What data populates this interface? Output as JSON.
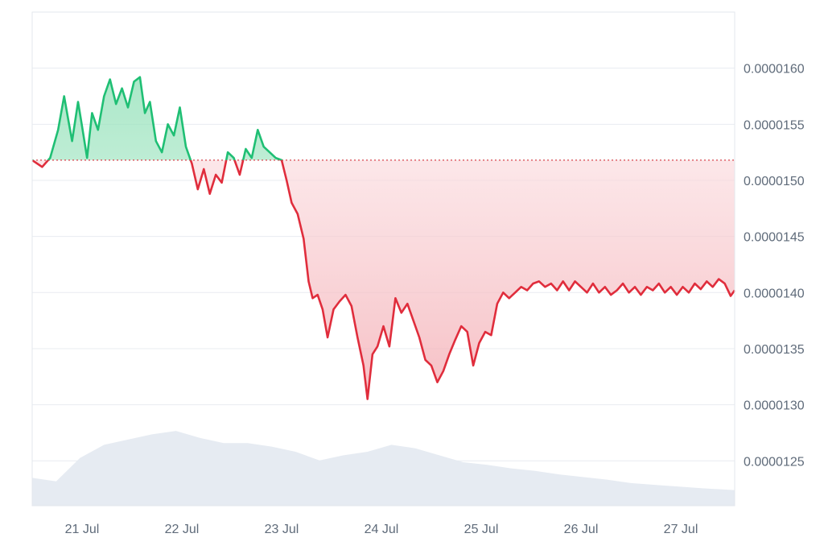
{
  "chart_data": {
    "type": "area",
    "x_tick_labels": [
      "21 Jul",
      "22 Jul",
      "23 Jul",
      "24 Jul",
      "25 Jul",
      "26 Jul",
      "27 Jul"
    ],
    "y_tick_labels": [
      "0.0000160",
      "0.0000155",
      "0.0000150",
      "0.0000145",
      "0.0000140",
      "0.0000135",
      "0.0000130",
      "0.0000125"
    ],
    "y_ticks": [
      1.6e-05,
      1.55e-05,
      1.5e-05,
      1.45e-05,
      1.4e-05,
      1.35e-05,
      1.3e-05,
      1.25e-05
    ],
    "ylim": [
      1.21e-05,
      1.65e-05
    ],
    "xlim_days": [
      20.5,
      27.54
    ],
    "x_tick_days": [
      21,
      22,
      23,
      24,
      25,
      26,
      27
    ],
    "baseline": 1.518e-05,
    "grid": true,
    "series": [
      {
        "values": [
          [
            20.5,
            1.518e-05
          ],
          [
            20.6,
            1.512e-05
          ],
          [
            20.68,
            1.52e-05
          ],
          [
            20.76,
            1.545e-05
          ],
          [
            20.82,
            1.575e-05
          ],
          [
            20.86,
            1.555e-05
          ],
          [
            20.9,
            1.535e-05
          ],
          [
            20.96,
            1.57e-05
          ],
          [
            21.0,
            1.548e-05
          ],
          [
            21.05,
            1.52e-05
          ],
          [
            21.1,
            1.56e-05
          ],
          [
            21.16,
            1.545e-05
          ],
          [
            21.22,
            1.575e-05
          ],
          [
            21.28,
            1.59e-05
          ],
          [
            21.34,
            1.568e-05
          ],
          [
            21.4,
            1.582e-05
          ],
          [
            21.46,
            1.565e-05
          ],
          [
            21.52,
            1.588e-05
          ],
          [
            21.58,
            1.592e-05
          ],
          [
            21.63,
            1.56e-05
          ],
          [
            21.68,
            1.57e-05
          ],
          [
            21.74,
            1.535e-05
          ],
          [
            21.8,
            1.525e-05
          ],
          [
            21.86,
            1.55e-05
          ],
          [
            21.92,
            1.54e-05
          ],
          [
            21.98,
            1.565e-05
          ],
          [
            22.04,
            1.53e-05
          ],
          [
            22.1,
            1.515e-05
          ],
          [
            22.16,
            1.492e-05
          ],
          [
            22.22,
            1.51e-05
          ],
          [
            22.28,
            1.488e-05
          ],
          [
            22.34,
            1.505e-05
          ],
          [
            22.4,
            1.498e-05
          ],
          [
            22.46,
            1.525e-05
          ],
          [
            22.52,
            1.52e-05
          ],
          [
            22.58,
            1.505e-05
          ],
          [
            22.64,
            1.528e-05
          ],
          [
            22.7,
            1.52e-05
          ],
          [
            22.76,
            1.545e-05
          ],
          [
            22.82,
            1.53e-05
          ],
          [
            22.88,
            1.525e-05
          ],
          [
            22.94,
            1.52e-05
          ],
          [
            23.0,
            1.518e-05
          ],
          [
            23.05,
            1.5e-05
          ],
          [
            23.1,
            1.48e-05
          ],
          [
            23.16,
            1.47e-05
          ],
          [
            23.22,
            1.448e-05
          ],
          [
            23.27,
            1.41e-05
          ],
          [
            23.31,
            1.395e-05
          ],
          [
            23.36,
            1.398e-05
          ],
          [
            23.41,
            1.385e-05
          ],
          [
            23.46,
            1.36e-05
          ],
          [
            23.52,
            1.385e-05
          ],
          [
            23.58,
            1.392e-05
          ],
          [
            23.64,
            1.398e-05
          ],
          [
            23.7,
            1.388e-05
          ],
          [
            23.76,
            1.36e-05
          ],
          [
            23.82,
            1.335e-05
          ],
          [
            23.86,
            1.305e-05
          ],
          [
            23.91,
            1.345e-05
          ],
          [
            23.96,
            1.352e-05
          ],
          [
            24.02,
            1.37e-05
          ],
          [
            24.08,
            1.352e-05
          ],
          [
            24.14,
            1.395e-05
          ],
          [
            24.2,
            1.382e-05
          ],
          [
            24.26,
            1.39e-05
          ],
          [
            24.32,
            1.375e-05
          ],
          [
            24.38,
            1.36e-05
          ],
          [
            24.44,
            1.34e-05
          ],
          [
            24.5,
            1.335e-05
          ],
          [
            24.56,
            1.32e-05
          ],
          [
            24.62,
            1.33e-05
          ],
          [
            24.68,
            1.345e-05
          ],
          [
            24.74,
            1.358e-05
          ],
          [
            24.8,
            1.37e-05
          ],
          [
            24.86,
            1.365e-05
          ],
          [
            24.92,
            1.335e-05
          ],
          [
            24.98,
            1.355e-05
          ],
          [
            25.04,
            1.365e-05
          ],
          [
            25.1,
            1.362e-05
          ],
          [
            25.16,
            1.39e-05
          ],
          [
            25.22,
            1.4e-05
          ],
          [
            25.28,
            1.395e-05
          ],
          [
            25.34,
            1.4e-05
          ],
          [
            25.4,
            1.405e-05
          ],
          [
            25.46,
            1.402e-05
          ],
          [
            25.52,
            1.408e-05
          ],
          [
            25.58,
            1.41e-05
          ],
          [
            25.64,
            1.405e-05
          ],
          [
            25.7,
            1.408e-05
          ],
          [
            25.76,
            1.402e-05
          ],
          [
            25.82,
            1.41e-05
          ],
          [
            25.88,
            1.402e-05
          ],
          [
            25.94,
            1.41e-05
          ],
          [
            26.0,
            1.405e-05
          ],
          [
            26.06,
            1.4e-05
          ],
          [
            26.12,
            1.408e-05
          ],
          [
            26.18,
            1.4e-05
          ],
          [
            26.24,
            1.405e-05
          ],
          [
            26.3,
            1.398e-05
          ],
          [
            26.36,
            1.402e-05
          ],
          [
            26.42,
            1.408e-05
          ],
          [
            26.48,
            1.4e-05
          ],
          [
            26.54,
            1.405e-05
          ],
          [
            26.6,
            1.398e-05
          ],
          [
            26.66,
            1.405e-05
          ],
          [
            26.72,
            1.402e-05
          ],
          [
            26.78,
            1.408e-05
          ],
          [
            26.84,
            1.4e-05
          ],
          [
            26.9,
            1.405e-05
          ],
          [
            26.96,
            1.398e-05
          ],
          [
            27.02,
            1.405e-05
          ],
          [
            27.08,
            1.4e-05
          ],
          [
            27.14,
            1.408e-05
          ],
          [
            27.2,
            1.403e-05
          ],
          [
            27.26,
            1.41e-05
          ],
          [
            27.32,
            1.405e-05
          ],
          [
            27.38,
            1.412e-05
          ],
          [
            27.44,
            1.408e-05
          ],
          [
            27.5,
            1.397e-05
          ],
          [
            27.54,
            1.402e-05
          ]
        ]
      }
    ],
    "volume": [
      [
        20.5,
        0.32
      ],
      [
        20.74,
        0.28
      ],
      [
        20.98,
        0.55
      ],
      [
        21.22,
        0.7
      ],
      [
        21.46,
        0.76
      ],
      [
        21.7,
        0.82
      ],
      [
        21.94,
        0.86
      ],
      [
        22.18,
        0.78
      ],
      [
        22.42,
        0.72
      ],
      [
        22.66,
        0.72
      ],
      [
        22.9,
        0.68
      ],
      [
        23.14,
        0.62
      ],
      [
        23.38,
        0.52
      ],
      [
        23.62,
        0.58
      ],
      [
        23.86,
        0.62
      ],
      [
        24.1,
        0.7
      ],
      [
        24.34,
        0.66
      ],
      [
        24.58,
        0.58
      ],
      [
        24.82,
        0.5
      ],
      [
        25.06,
        0.47
      ],
      [
        25.3,
        0.43
      ],
      [
        25.54,
        0.4
      ],
      [
        25.78,
        0.36
      ],
      [
        26.02,
        0.33
      ],
      [
        26.26,
        0.3
      ],
      [
        26.5,
        0.26
      ],
      [
        26.74,
        0.24
      ],
      [
        26.98,
        0.22
      ],
      [
        27.22,
        0.2
      ],
      [
        27.54,
        0.18
      ]
    ],
    "colors": {
      "up_line": "#1fbf74",
      "up_fill": "#d6f4e4",
      "down_line": "#e02d3c",
      "down_fill": "#fbe0e2",
      "baseline": "#d8434d",
      "volume": "#e6ebf2",
      "grid": "#e8ecf1",
      "tick_text": "#5f6b7a"
    }
  }
}
